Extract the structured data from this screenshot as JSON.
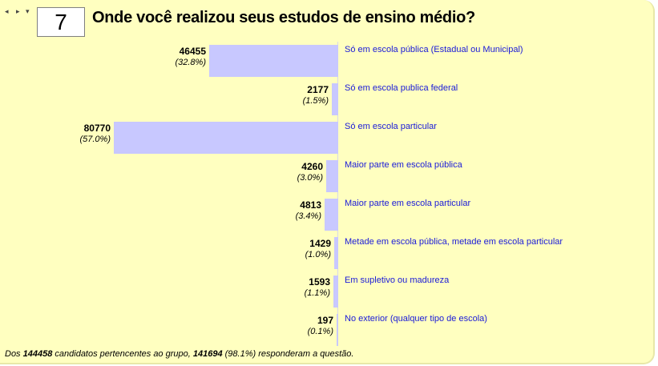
{
  "nav": {
    "prev_icon": "◂",
    "next_icon": "▸",
    "menu_icon": "▾"
  },
  "question": {
    "number": "7",
    "title": "Onde você realizou seus estudos de ensino médio?"
  },
  "chart_data": {
    "type": "bar",
    "orientation": "horizontal",
    "categories": [
      "Só em escola pública (Estadual ou Municipal)",
      "Só em escola publica federal",
      "Só em escola particular",
      "Maior parte em escola pública",
      "Maior parte em escola particular",
      "Metade em escola pública, metade em escola particular",
      "Em supletivo ou madureza",
      "No exterior (qualquer tipo de escola)"
    ],
    "values": [
      46455,
      2177,
      80770,
      4260,
      4813,
      1429,
      1593,
      197
    ],
    "value_labels": [
      "46455",
      "2177",
      "80770",
      "4260",
      "4813",
      "1429",
      "1593",
      "197"
    ],
    "percent_labels": [
      "(32.8%)",
      "(1.5%)",
      "(57.0%)",
      "(3.0%)",
      "(3.4%)",
      "(1.0%)",
      "(1.1%)",
      "(0.1%)"
    ],
    "bar_color": "#c8c8ff",
    "label_color": "#1a1ad8"
  },
  "footer": {
    "prefix": "Dos ",
    "total": "144458",
    "middle": " candidatos pertencentes ao grupo, ",
    "answered": "141694",
    "answered_pct": " (98.1%)",
    "suffix": " responderam a questão."
  },
  "colors": {
    "background": "#ffffc0",
    "bar": "#c8c8ff",
    "link": "#1a1ad8"
  }
}
